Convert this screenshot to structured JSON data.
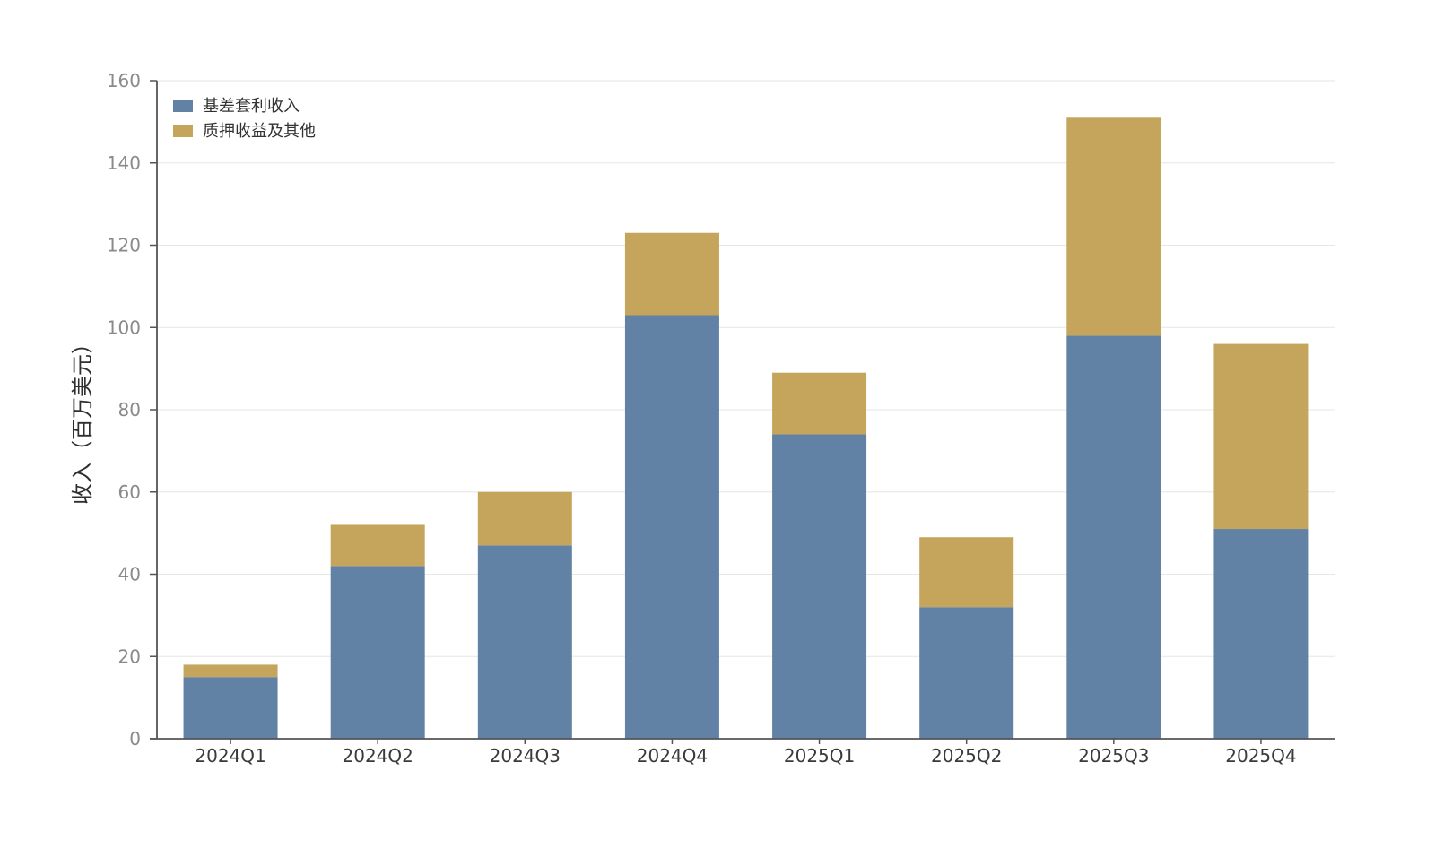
{
  "chart_data": {
    "type": "bar",
    "stacked": true,
    "title": "",
    "xlabel": "",
    "ylabel": "收入（百万美元）",
    "ylim": [
      0,
      160
    ],
    "yticks": [
      0,
      20,
      40,
      60,
      80,
      100,
      120,
      140,
      160
    ],
    "grid": "horizontal",
    "legend_position": "top-left",
    "categories": [
      "2024Q1",
      "2024Q2",
      "2024Q3",
      "2024Q4",
      "2025Q1",
      "2025Q2",
      "2025Q3",
      "2025Q4"
    ],
    "series": [
      {
        "name": "基差套利收入",
        "color": "#6182a5",
        "values": [
          15,
          42,
          47,
          103,
          74,
          32,
          98,
          51
        ]
      },
      {
        "name": "质押收益及其他",
        "color": "#c4a55b",
        "values": [
          3,
          10,
          13,
          20,
          15,
          17,
          53,
          45
        ]
      }
    ]
  }
}
